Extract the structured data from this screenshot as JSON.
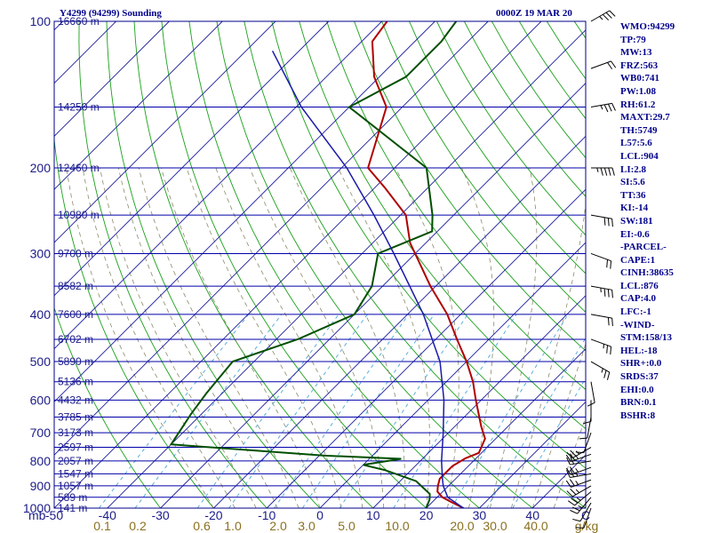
{
  "header": {
    "station": "Y4299 (94299) Sounding",
    "time": "0000Z 19 MAR 20"
  },
  "indices": [
    "WMO:94299",
    "TP:79",
    "MW:13",
    "FRZ:563",
    "WB0:741",
    "PW:1.08",
    "RH:61.2",
    "MAXT:29.7",
    "TH:5749",
    "L57:5.6",
    "LCL:904",
    "LI:2.8",
    "SI:5.6",
    "TT:36",
    "KI:-14",
    "SW:181",
    "EI:-0.6",
    "-PARCEL-",
    "CAPE:1",
    "CINH:38635",
    "LCL:876",
    "CAP:4.0",
    "LFC:-1",
    "-WIND-",
    "STM:158/13",
    "HEL:-18",
    "SHR+:0.0",
    "SRDS:37",
    "EHI:0.0",
    "BRN:0.1",
    "BSHR:8"
  ],
  "colors": {
    "isobar": "#0000aa",
    "skewed_isotherm": "#1c1c9c",
    "dry_adiabat": "#1aa01a",
    "moist_adiabat": "#8a8a6a",
    "mixing_ratio": "#4aa8d8",
    "temperature": "#b00000",
    "dewpoint": "#004f00",
    "parcel": "#1a1aa8",
    "label_blue": "#1c1c8a",
    "label_mixing": "#8a7020"
  },
  "chart_data": {
    "type": "line",
    "title": "",
    "ylabel": "mb",
    "xlabel": "",
    "y_axis_scale": "log-pressure (inverted)",
    "ylim": [
      1000,
      100
    ],
    "xlim": [
      -50,
      50
    ],
    "skewed_temperature": true,
    "grid": true,
    "pressure_ticks": [
      100,
      200,
      300,
      400,
      500,
      600,
      700,
      800,
      900,
      1000
    ],
    "temperature_ticks": [
      -50,
      -40,
      -30,
      -20,
      -10,
      0,
      10,
      20,
      30,
      40
    ],
    "mixing_ratio_labels": [
      "0.1",
      "0.2",
      "0.6",
      "1.0",
      "2.0",
      "3.0",
      "5.0",
      "10.0",
      "20.0",
      "30.0",
      "40.0"
    ],
    "mixing_ratio_unit": "g/kg",
    "extra_x_label": "C",
    "height_levels": [
      {
        "p": 100,
        "h": "16660 m"
      },
      {
        "p": 150,
        "h": "14250 m"
      },
      {
        "p": 200,
        "h": "12460 m"
      },
      {
        "p": 250,
        "h": "10980 m"
      },
      {
        "p": 300,
        "h": "9700 m"
      },
      {
        "p": 350,
        "h": "8582 m"
      },
      {
        "p": 400,
        "h": "7600 m"
      },
      {
        "p": 450,
        "h": "6702 m"
      },
      {
        "p": 500,
        "h": "5890 m"
      },
      {
        "p": 550,
        "h": "5136 m"
      },
      {
        "p": 600,
        "h": "4432 m"
      },
      {
        "p": 650,
        "h": "3785 m"
      },
      {
        "p": 700,
        "h": "3173 m"
      },
      {
        "p": 750,
        "h": "2597 m"
      },
      {
        "p": 800,
        "h": "2057 m"
      },
      {
        "p": 850,
        "h": "1547 m"
      },
      {
        "p": 900,
        "h": "1057 m"
      },
      {
        "p": 950,
        "h": "589 m"
      },
      {
        "p": 1000,
        "h": "141 m"
      }
    ],
    "series": [
      {
        "role": "temperature",
        "color": "#b00000",
        "points": [
          {
            "p": 1000,
            "t": 27
          },
          {
            "p": 975,
            "t": 24
          },
          {
            "p": 950,
            "t": 21
          },
          {
            "p": 925,
            "t": 19
          },
          {
            "p": 900,
            "t": 18
          },
          {
            "p": 870,
            "t": 17
          },
          {
            "p": 820,
            "t": 17
          },
          {
            "p": 790,
            "t": 18
          },
          {
            "p": 770,
            "t": 19.5
          },
          {
            "p": 720,
            "t": 18
          },
          {
            "p": 680,
            "t": 15
          },
          {
            "p": 600,
            "t": 9
          },
          {
            "p": 550,
            "t": 5
          },
          {
            "p": 500,
            "t": 0
          },
          {
            "p": 450,
            "t": -6
          },
          {
            "p": 400,
            "t": -12.5
          },
          {
            "p": 350,
            "t": -21
          },
          {
            "p": 300,
            "t": -30
          },
          {
            "p": 285,
            "t": -33
          },
          {
            "p": 250,
            "t": -39
          },
          {
            "p": 220,
            "t": -48
          },
          {
            "p": 200,
            "t": -55
          },
          {
            "p": 150,
            "t": -63
          },
          {
            "p": 130,
            "t": -71
          },
          {
            "p": 110,
            "t": -78
          },
          {
            "p": 100,
            "t": -79
          }
        ]
      },
      {
        "role": "dewpoint",
        "color": "#004f00",
        "points": [
          {
            "p": 1000,
            "t": 20
          },
          {
            "p": 960,
            "t": 19
          },
          {
            "p": 935,
            "t": 18
          },
          {
            "p": 880,
            "t": 13
          },
          {
            "p": 835,
            "t": 5
          },
          {
            "p": 815,
            "t": 0
          },
          {
            "p": 792,
            "t": 6
          },
          {
            "p": 780,
            "t": -9
          },
          {
            "p": 740,
            "t": -40
          },
          {
            "p": 640,
            "t": -42
          },
          {
            "p": 580,
            "t": -43
          },
          {
            "p": 500,
            "t": -44
          },
          {
            "p": 450,
            "t": -36
          },
          {
            "p": 400,
            "t": -30
          },
          {
            "p": 350,
            "t": -32
          },
          {
            "p": 300,
            "t": -37
          },
          {
            "p": 270,
            "t": -31
          },
          {
            "p": 250,
            "t": -34
          },
          {
            "p": 200,
            "t": -44
          },
          {
            "p": 150,
            "t": -70
          },
          {
            "p": 130,
            "t": -65
          },
          {
            "p": 110,
            "t": -65
          },
          {
            "p": 100,
            "t": -66
          }
        ]
      },
      {
        "role": "parcel",
        "color": "#1a1aa8",
        "points": [
          {
            "p": 1000,
            "t": 27
          },
          {
            "p": 950,
            "t": 22
          },
          {
            "p": 900,
            "t": 19
          },
          {
            "p": 870,
            "t": 17.5
          },
          {
            "p": 800,
            "t": 14
          },
          {
            "p": 700,
            "t": 9
          },
          {
            "p": 600,
            "t": 3
          },
          {
            "p": 500,
            "t": -5
          },
          {
            "p": 400,
            "t": -17
          },
          {
            "p": 300,
            "t": -34
          },
          {
            "p": 250,
            "t": -45
          },
          {
            "p": 200,
            "t": -59
          },
          {
            "p": 150,
            "t": -79
          },
          {
            "p": 115,
            "t": -95
          }
        ]
      }
    ],
    "wind_barbs": [
      {
        "p": 1000,
        "dir": 200,
        "speed": 10
      },
      {
        "p": 975,
        "dir": 210,
        "speed": 10
      },
      {
        "p": 950,
        "dir": 220,
        "speed": 15
      },
      {
        "p": 925,
        "dir": 230,
        "speed": 15
      },
      {
        "p": 900,
        "dir": 240,
        "speed": 15
      },
      {
        "p": 875,
        "dir": 250,
        "speed": 15
      },
      {
        "p": 850,
        "dir": 260,
        "speed": 15
      },
      {
        "p": 825,
        "dir": 250,
        "speed": 15
      },
      {
        "p": 800,
        "dir": 260,
        "speed": 20
      },
      {
        "p": 775,
        "dir": 250,
        "speed": 15
      },
      {
        "p": 750,
        "dir": 240,
        "speed": 15
      },
      {
        "p": 700,
        "dir": 200,
        "speed": 10
      },
      {
        "p": 650,
        "dir": 190,
        "speed": 10
      },
      {
        "p": 600,
        "dir": 180,
        "speed": 10
      },
      {
        "p": 550,
        "dir": 170,
        "speed": 10
      },
      {
        "p": 500,
        "dir": 120,
        "speed": 15
      },
      {
        "p": 450,
        "dir": 110,
        "speed": 15
      },
      {
        "p": 400,
        "dir": 100,
        "speed": 20
      },
      {
        "p": 350,
        "dir": 100,
        "speed": 25
      },
      {
        "p": 300,
        "dir": 110,
        "speed": 20
      },
      {
        "p": 250,
        "dir": 100,
        "speed": 30
      },
      {
        "p": 200,
        "dir": 90,
        "speed": 35
      },
      {
        "p": 150,
        "dir": 80,
        "speed": 25
      },
      {
        "p": 125,
        "dir": 70,
        "speed": 20
      },
      {
        "p": 100,
        "dir": 60,
        "speed": 25
      }
    ]
  }
}
